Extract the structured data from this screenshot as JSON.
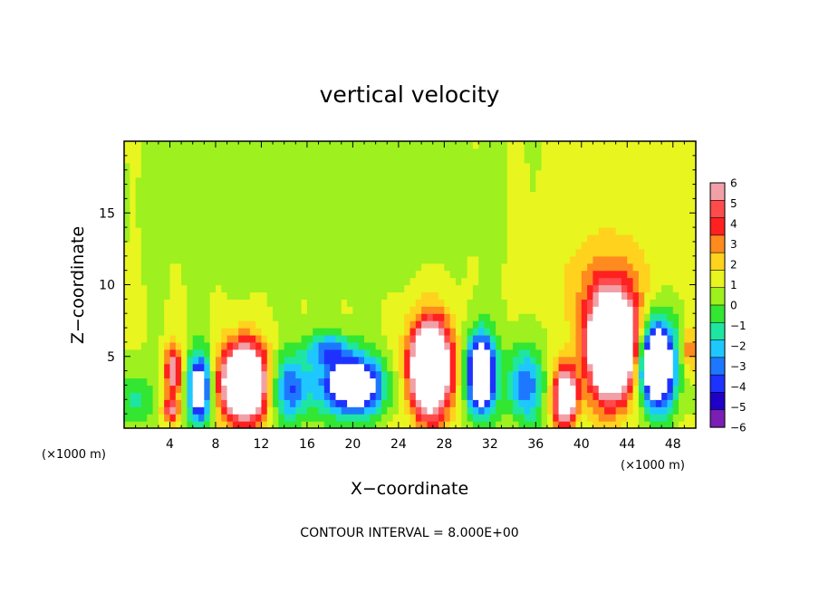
{
  "chart_data": {
    "type": "heatmap",
    "title": "vertical velocity",
    "xlabel": "X−coordinate",
    "ylabel": "Z−coordinate",
    "x_unit_left": "(×1000 m)",
    "x_unit_right": "(×1000 m)",
    "footer": "CONTOUR INTERVAL = 8.000E+00",
    "xlim": [
      0,
      50
    ],
    "ylim": [
      0,
      20
    ],
    "x_ticks": [
      4,
      8,
      12,
      16,
      20,
      24,
      28,
      32,
      36,
      40,
      44,
      48
    ],
    "x_tick_labels": [
      "4",
      "8",
      "12",
      "16",
      "20",
      "24",
      "28",
      "32",
      "36",
      "40",
      "44",
      "48"
    ],
    "y_ticks": [
      5,
      10,
      15
    ],
    "y_tick_labels": [
      "5",
      "10",
      "15"
    ],
    "colorbar": {
      "min": -6,
      "max": 6,
      "tick_values": [
        6,
        5,
        4,
        3,
        2,
        1,
        0,
        -1,
        -2,
        -3,
        -4,
        -5,
        -6
      ],
      "tick_labels": [
        "6",
        "5",
        "4",
        "3",
        "2",
        "1",
        "0",
        "−1",
        "−2",
        "−3",
        "−4",
        "−5",
        "−6"
      ],
      "colors": [
        "#f2a0a8",
        "#ff4b4b",
        "#ff2020",
        "#ff8a1e",
        "#ffd21e",
        "#e8f51e",
        "#9ef01e",
        "#32e632",
        "#1ee6a0",
        "#1ec8ff",
        "#1e78ff",
        "#1e32ff",
        "#1e00c8",
        "#7a1eb4"
      ]
    },
    "features": [
      {
        "kind": "updraft",
        "x": 4.3,
        "z": 4.0,
        "w": 1.0,
        "sx": 0.7,
        "sz": 1.8,
        "amp": 6
      },
      {
        "kind": "updraft",
        "x": 4.0,
        "z": 1.3,
        "w": 0.9,
        "sx": 0.7,
        "sz": 0.8,
        "amp": 5
      },
      {
        "kind": "downdraft",
        "x": 6.6,
        "z": 2.8,
        "w": 1,
        "sx": 1.0,
        "sz": 2.5,
        "amp": -8
      },
      {
        "kind": "updraft",
        "x": 10.5,
        "z": 3.2,
        "w": 1,
        "sx": 1.9,
        "sz": 2.6,
        "amp": 14
      },
      {
        "kind": "downdraft",
        "x": 14.6,
        "z": 2.8,
        "w": 1,
        "sx": 1.8,
        "sz": 2.3,
        "amp": -5
      },
      {
        "kind": "downdraft",
        "x": 20.0,
        "z": 3.0,
        "w": 1,
        "sx": 2.6,
        "sz": 2.0,
        "amp": -10
      },
      {
        "kind": "downdraft",
        "x": 17.8,
        "z": 5.5,
        "w": 1,
        "sx": 2.0,
        "sz": 1.2,
        "amp": -4
      },
      {
        "kind": "updraft",
        "x": 26.8,
        "z": 4.2,
        "w": 1,
        "sx": 1.8,
        "sz": 3.2,
        "amp": 14
      },
      {
        "kind": "downdraft",
        "x": 31.2,
        "z": 3.8,
        "w": 1,
        "sx": 1.2,
        "sz": 2.6,
        "amp": -12
      },
      {
        "kind": "downdraft",
        "x": 35.0,
        "z": 3.0,
        "w": 1,
        "sx": 1.5,
        "sz": 2.5,
        "amp": -5
      },
      {
        "kind": "updraft",
        "x": 38.6,
        "z": 2.2,
        "w": 1,
        "sx": 1.0,
        "sz": 2.0,
        "amp": 10
      },
      {
        "kind": "updraft",
        "x": 42.8,
        "z": 5.6,
        "w": 1,
        "sx": 2.2,
        "sz": 3.5,
        "amp": 15
      },
      {
        "kind": "updraft",
        "x": 42.0,
        "z": 10.0,
        "w": 1,
        "sx": 4.0,
        "sz": 3.5,
        "amp": 2
      },
      {
        "kind": "downdraft",
        "x": 46.5,
        "z": 4.5,
        "w": 1,
        "sx": 1.7,
        "sz": 3.0,
        "amp": -12
      },
      {
        "kind": "updraft",
        "x": 49.5,
        "z": 5.5,
        "w": 1,
        "sx": 0.9,
        "sz": 1.5,
        "amp": 3
      },
      {
        "kind": "downdraft",
        "x": 1.0,
        "z": 2.0,
        "w": 1,
        "sx": 1.3,
        "sz": 2.0,
        "amp": -2.5
      },
      {
        "kind": "weak",
        "x": 17.0,
        "z": 14.5,
        "w": 1,
        "sx": 9.0,
        "sz": 4.0,
        "amp": -0.6
      },
      {
        "kind": "weak",
        "x": 44.0,
        "z": 14.5,
        "w": 1,
        "sx": 5.0,
        "sz": 4.0,
        "amp": 0.4
      }
    ]
  }
}
